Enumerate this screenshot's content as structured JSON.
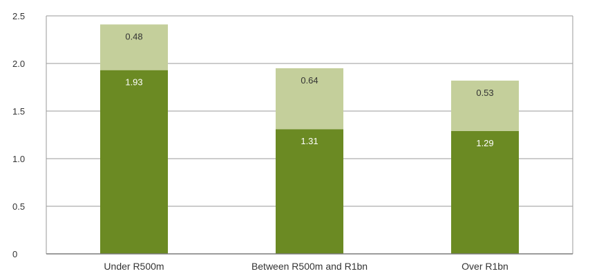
{
  "chart_data": {
    "type": "bar",
    "stacked": true,
    "title": "",
    "xlabel": "",
    "ylabel": "",
    "categories": [
      "Under R500m",
      "Between R500m and R1bn",
      "Over R1bn"
    ],
    "series": [
      {
        "values": [
          1.93,
          1.31,
          1.29
        ],
        "labels": [
          "1.93",
          "1.31",
          "1.29"
        ],
        "color": "#6b8a23",
        "label_color": "#ffffff"
      },
      {
        "values": [
          0.48,
          0.64,
          0.53
        ],
        "labels": [
          "0.48",
          "0.64",
          "0.53"
        ],
        "color": "#c4cf9b",
        "label_color": "#333333"
      }
    ],
    "y_ticks": [
      "0",
      "0.5",
      "1.0",
      "1.5",
      "2.0",
      "2.5"
    ],
    "ylim": [
      0,
      2.5
    ],
    "grid": true,
    "legend": "none"
  }
}
